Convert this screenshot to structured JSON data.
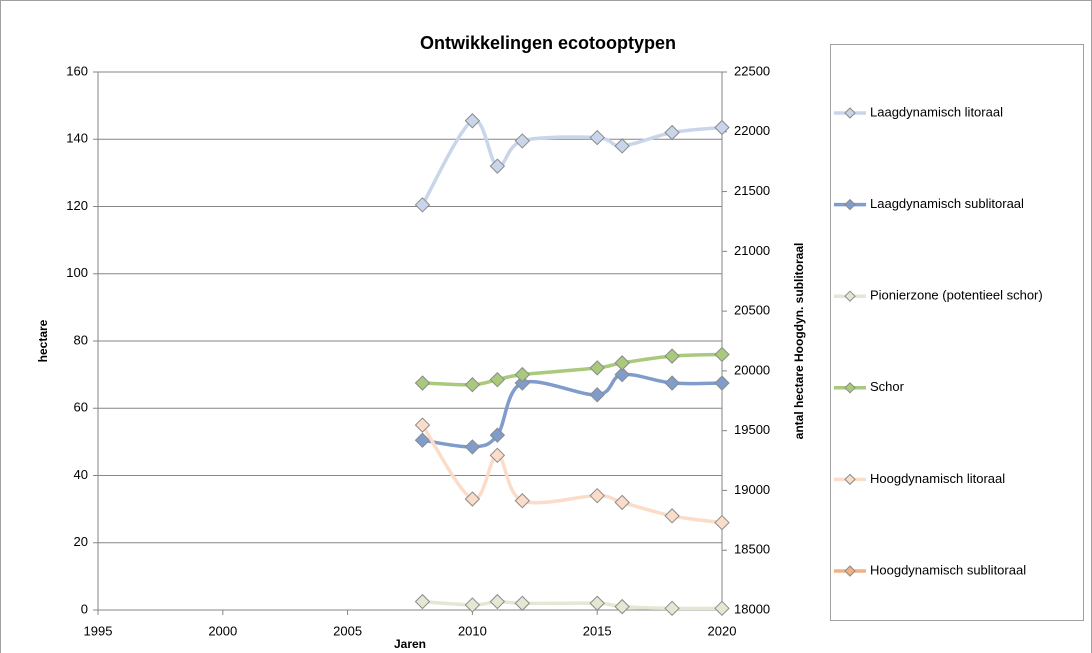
{
  "chart_data": {
    "type": "line",
    "title": "Ontwikkelingen ecotooptypen",
    "x_label": "Jaren",
    "y_label": "hectare",
    "y2_label": "antal hectare Hoogdyn. sublitoraal",
    "x": [
      2008,
      2010,
      2011,
      2012,
      2015,
      2016,
      2018,
      2020
    ],
    "xlim": [
      1995,
      2020
    ],
    "xticks": [
      1995,
      2000,
      2005,
      2010,
      2015,
      2020
    ],
    "ylim": [
      0,
      160
    ],
    "yticks": [
      0,
      20,
      40,
      60,
      80,
      100,
      120,
      140,
      160
    ],
    "y2lim": [
      18000,
      22500
    ],
    "y2ticks": [
      18000,
      18500,
      19000,
      19500,
      20000,
      20500,
      21000,
      21500,
      22000,
      22500
    ],
    "grid": true,
    "legend": "right",
    "series": [
      {
        "name": "Laagdynamisch litoraal",
        "color": "#c9d6ea",
        "values": [
          120.5,
          145.5,
          132,
          139.5,
          140.5,
          138,
          142,
          143.5
        ]
      },
      {
        "name": "Laagdynamisch sublitoraal",
        "color": "#7f9ccc",
        "values": [
          50.5,
          48.5,
          52,
          67.5,
          64,
          70,
          67.5,
          67.5
        ]
      },
      {
        "name": "Pionierzone (potentieel schor)",
        "color": "#e2e8d2",
        "values": [
          2.5,
          1.5,
          2.5,
          2,
          2,
          1,
          0.5,
          0.5
        ]
      },
      {
        "name": "Schor",
        "color": "#a9c97c",
        "values": [
          67.5,
          67,
          68.5,
          70,
          72,
          73.5,
          75.5,
          76
        ]
      },
      {
        "name": "Hoogdynamisch litoraal",
        "color": "#fbdcc9",
        "values": [
          55,
          33,
          46,
          32.5,
          34,
          32,
          28,
          26
        ]
      },
      {
        "name": "Hoogdynamisch sublitoraal",
        "color": "#f4b183",
        "axis": "y2",
        "values": [
          null,
          null,
          null,
          null,
          null,
          null,
          null,
          null
        ]
      }
    ]
  }
}
